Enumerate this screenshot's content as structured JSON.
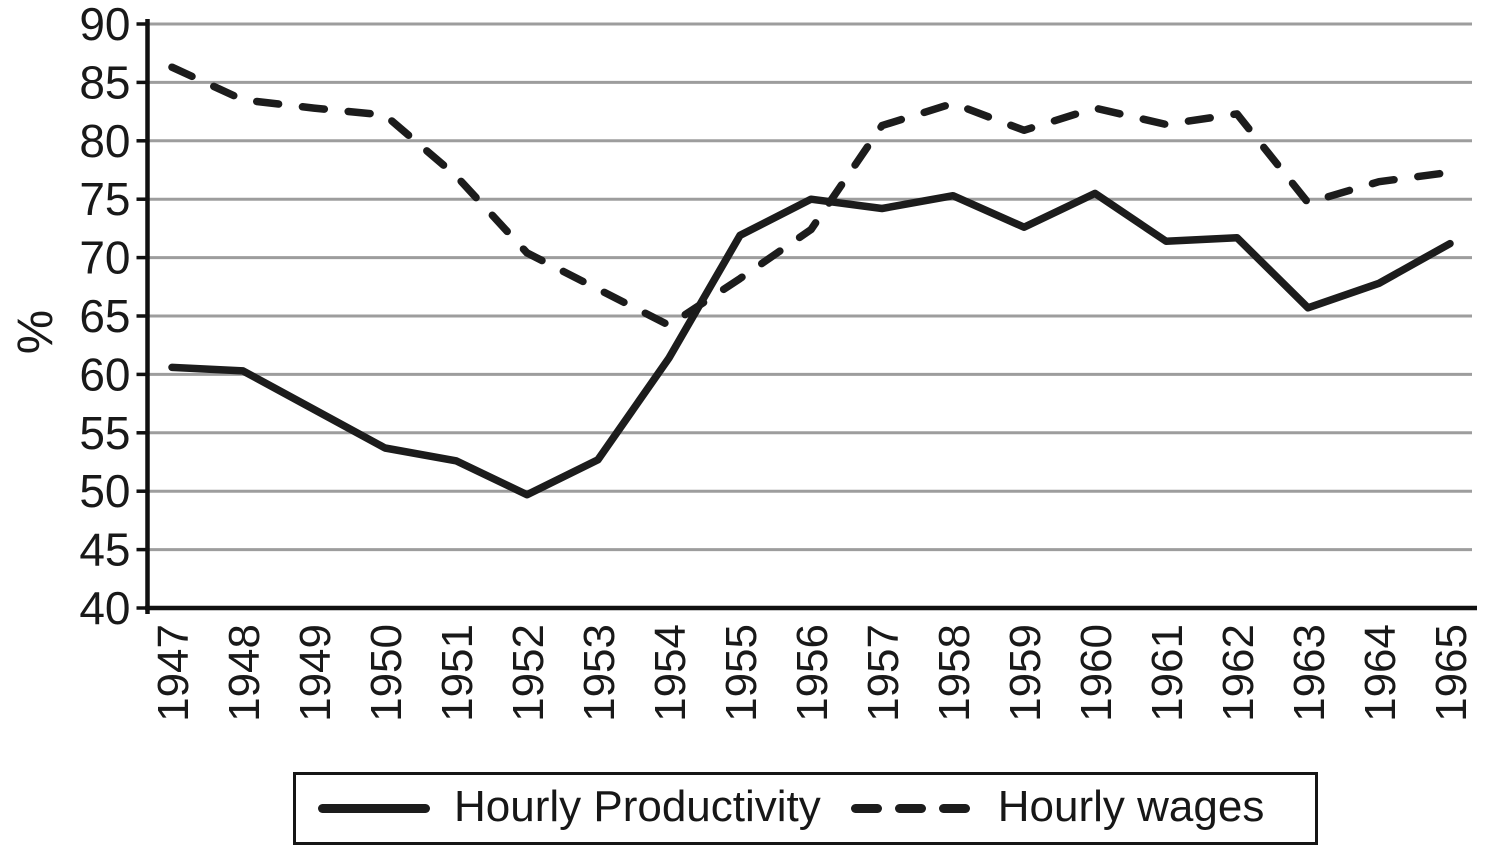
{
  "chart_data": {
    "type": "line",
    "title": "",
    "xlabel": "",
    "ylabel": "%",
    "ylim": [
      40,
      90
    ],
    "ytick_step": 5,
    "yticks": [
      40,
      45,
      50,
      55,
      60,
      65,
      70,
      75,
      80,
      85,
      90
    ],
    "grid": "horizontal",
    "legend_position": "bottom",
    "categories": [
      "1947",
      "1948",
      "1949",
      "1950",
      "1951",
      "1952",
      "1953",
      "1954",
      "1955",
      "1956",
      "1957",
      "1958",
      "1959",
      "1960",
      "1961",
      "1962",
      "1963",
      "1964",
      "1965"
    ],
    "series": [
      {
        "name": "Hourly Productivity",
        "style": "solid",
        "values": [
          60.6,
          60.3,
          57.0,
          53.7,
          52.6,
          49.7,
          52.7,
          61.4,
          71.9,
          75.0,
          74.2,
          75.3,
          72.6,
          75.5,
          71.4,
          71.7,
          65.7,
          67.8,
          71.2
        ]
      },
      {
        "name": "Hourly wages",
        "style": "dashed",
        "values": [
          86.3,
          83.5,
          82.8,
          82.2,
          77.0,
          70.4,
          67.3,
          64.2,
          68.2,
          72.4,
          81.3,
          83.2,
          80.9,
          82.8,
          81.4,
          82.3,
          74.7,
          76.5,
          77.3
        ]
      }
    ]
  },
  "y_axis": {
    "label": "%"
  },
  "legend": {
    "items": [
      {
        "label": "Hourly Productivity",
        "line_style": "solid"
      },
      {
        "label": "Hourly wages",
        "line_style": "dashed"
      }
    ]
  },
  "colors": {
    "line": "#1c1c1c",
    "grid": "#9d9d9d",
    "axis": "#111111",
    "text": "#191919",
    "background": "#ffffff"
  }
}
